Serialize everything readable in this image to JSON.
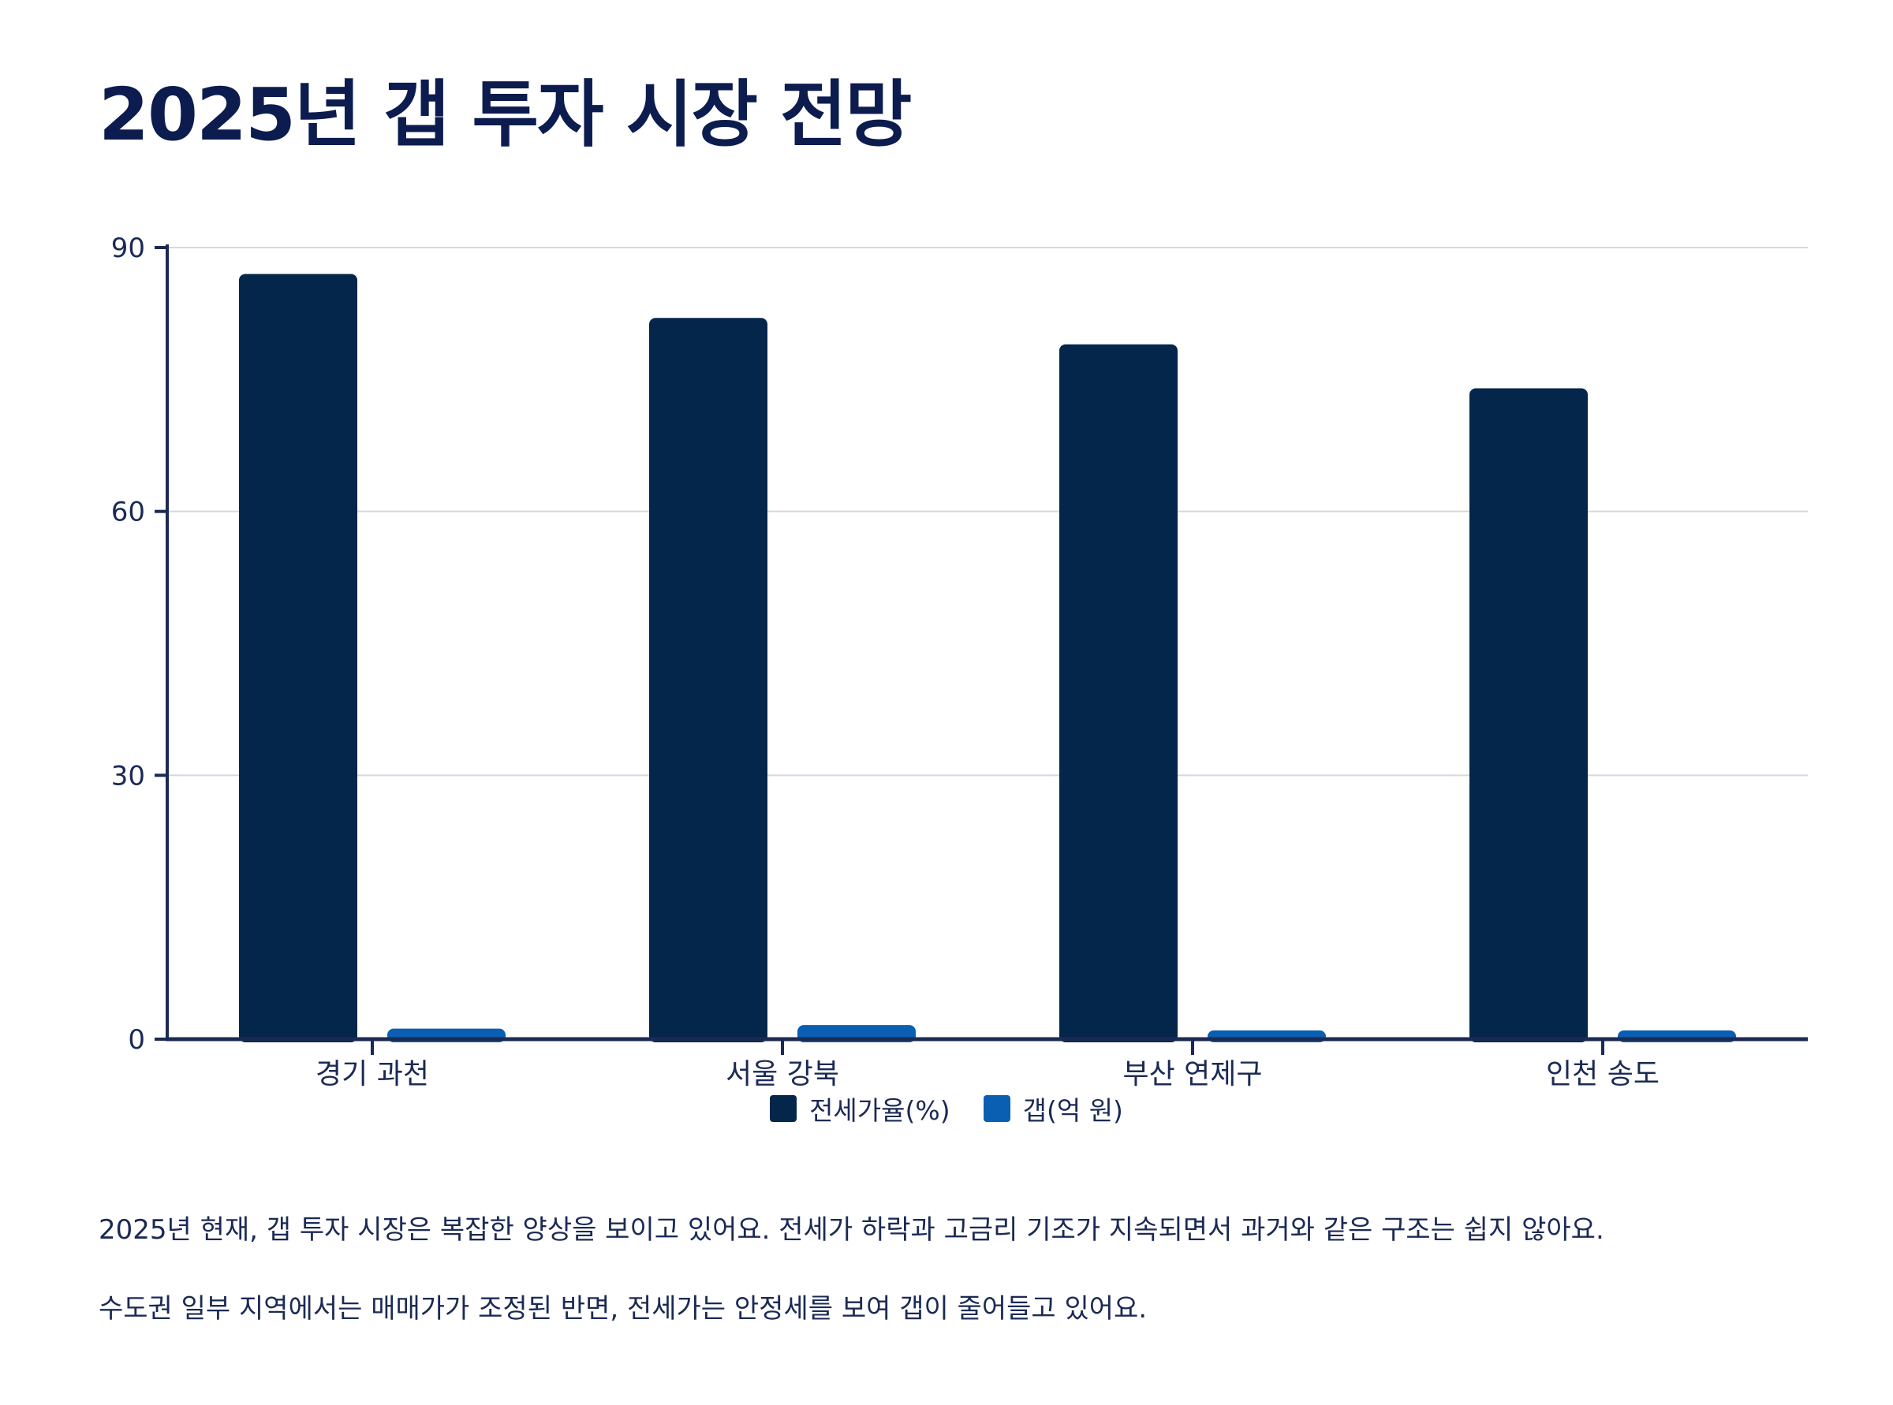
{
  "title": "2025년 갭 투자 시장 전망",
  "colors": {
    "series1": "#04264b",
    "series2": "#0a5fb3",
    "axis": "#1b2a55",
    "grid": "#d5d8e0"
  },
  "chart_data": {
    "type": "bar",
    "categories": [
      "경기 과천",
      "서울 강북",
      "부산 연제구",
      "인천 송도"
    ],
    "series": [
      {
        "name": "전세가율(%)",
        "values": [
          87,
          82,
          79,
          74
        ]
      },
      {
        "name": "갭(억 원)",
        "values": [
          1.2,
          1.6,
          1.0,
          1.0
        ]
      }
    ],
    "y_ticks": [
      "0",
      "30",
      "60",
      "90"
    ],
    "ylim": [
      0,
      90
    ],
    "grid": true,
    "legend_position": "bottom-center"
  },
  "paragraphs": [
    "2025년 현재, 갭 투자 시장은 복잡한 양상을 보이고 있어요. 전세가 하락과 고금리 기조가 지속되면서 과거와 같은 구조는 쉽지 않아요.",
    "수도권 일부 지역에서는 매매가가 조정된 반면, 전세가는 안정세를 보여 갭이 줄어들고 있어요."
  ]
}
